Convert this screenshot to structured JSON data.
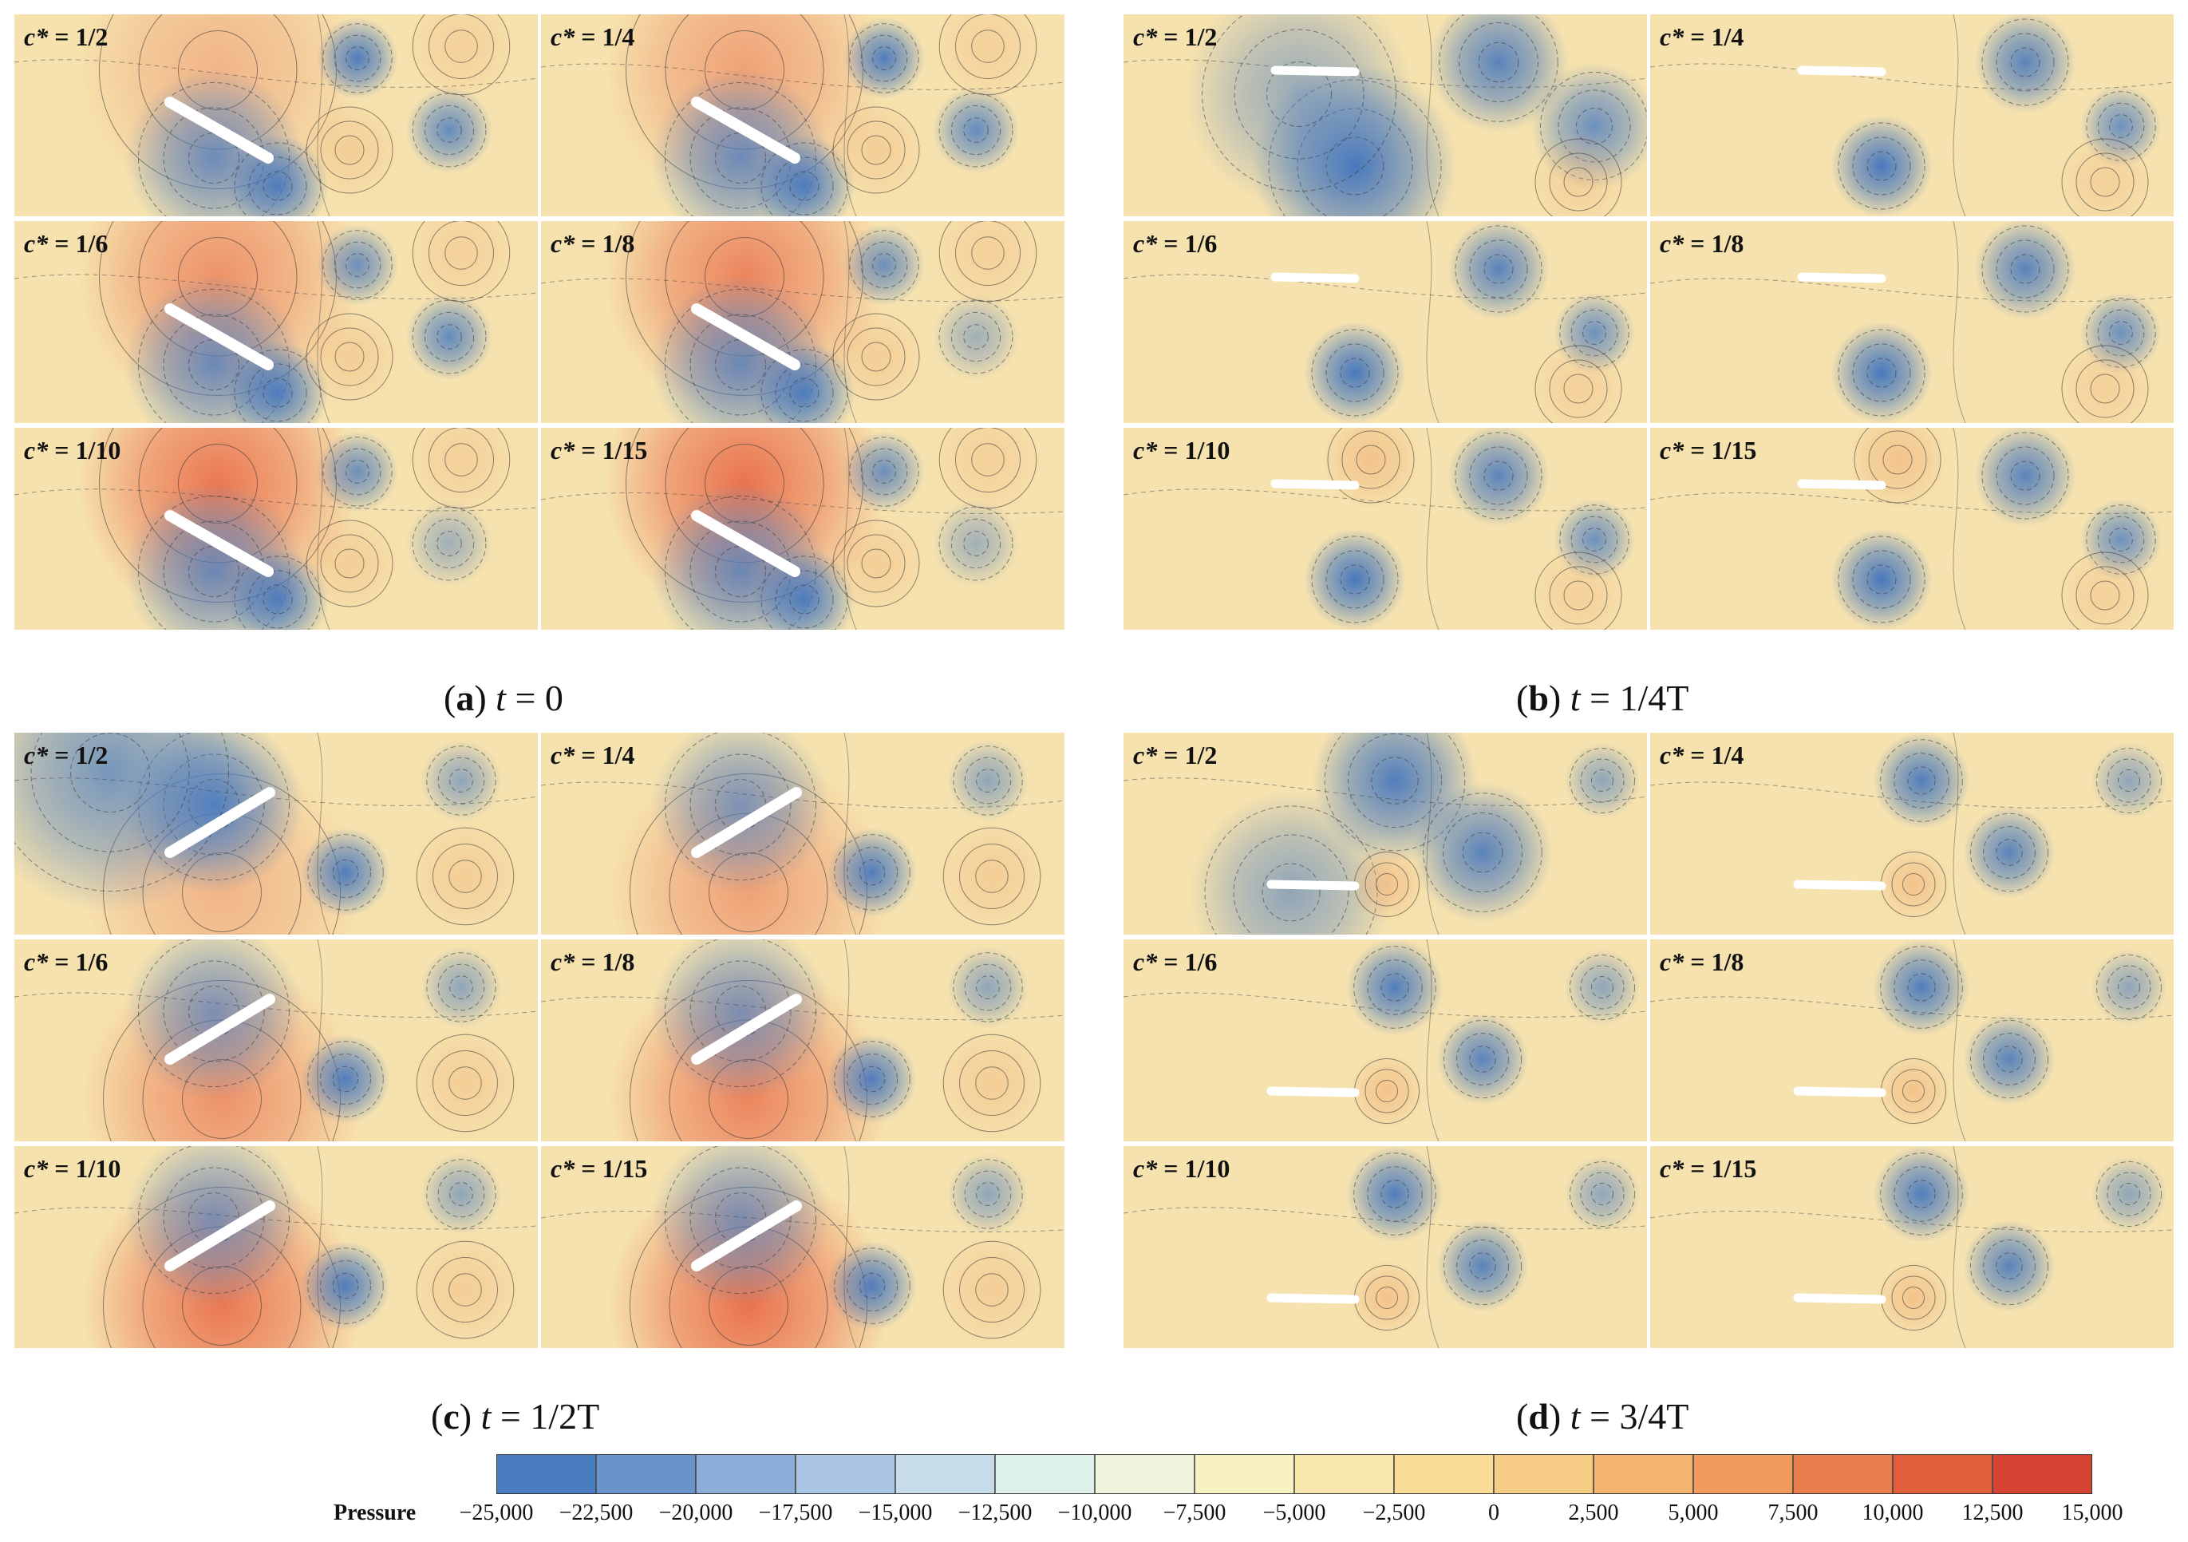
{
  "groups": [
    {
      "id": "a",
      "caption_letter": "a",
      "caption_var": "t",
      "caption_value": "= 0",
      "regime": "a",
      "panels": [
        {
          "label_var": "c*",
          "label_value": "= 1/2",
          "level": 0
        },
        {
          "label_var": "c*",
          "label_value": "= 1/4",
          "level": 1
        },
        {
          "label_var": "c*",
          "label_value": "= 1/6",
          "level": 2
        },
        {
          "label_var": "c*",
          "label_value": "= 1/8",
          "level": 3
        },
        {
          "label_var": "c*",
          "label_value": "= 1/10",
          "level": 4
        },
        {
          "label_var": "c*",
          "label_value": "= 1/15",
          "level": 5
        }
      ]
    },
    {
      "id": "b",
      "caption_letter": "b",
      "caption_var": "t",
      "caption_value": "= 1/4T",
      "regime": "b",
      "panels": [
        {
          "label_var": "c*",
          "label_value": "= 1/2",
          "level": 0
        },
        {
          "label_var": "c*",
          "label_value": "= 1/4",
          "level": 1
        },
        {
          "label_var": "c*",
          "label_value": "= 1/6",
          "level": 2
        },
        {
          "label_var": "c*",
          "label_value": "= 1/8",
          "level": 3
        },
        {
          "label_var": "c*",
          "label_value": "= 1/10",
          "level": 4
        },
        {
          "label_var": "c*",
          "label_value": "= 1/15",
          "level": 5
        }
      ]
    },
    {
      "id": "c",
      "caption_letter": "c",
      "caption_var": "t",
      "caption_value": "= 1/2T",
      "regime": "c",
      "panels": [
        {
          "label_var": "c*",
          "label_value": "= 1/2",
          "level": 0
        },
        {
          "label_var": "c*",
          "label_value": "= 1/4",
          "level": 1
        },
        {
          "label_var": "c*",
          "label_value": "= 1/6",
          "level": 2
        },
        {
          "label_var": "c*",
          "label_value": "= 1/8",
          "level": 3
        },
        {
          "label_var": "c*",
          "label_value": "= 1/10",
          "level": 4
        },
        {
          "label_var": "c*",
          "label_value": "= 1/15",
          "level": 5
        }
      ]
    },
    {
      "id": "d",
      "caption_letter": "d",
      "caption_var": "t",
      "caption_value": "= 3/4T",
      "regime": "d",
      "panels": [
        {
          "label_var": "c*",
          "label_value": "= 1/2",
          "level": 0
        },
        {
          "label_var": "c*",
          "label_value": "= 1/4",
          "level": 1
        },
        {
          "label_var": "c*",
          "label_value": "= 1/6",
          "level": 2
        },
        {
          "label_var": "c*",
          "label_value": "= 1/8",
          "level": 3
        },
        {
          "label_var": "c*",
          "label_value": "= 1/10",
          "level": 4
        },
        {
          "label_var": "c*",
          "label_value": "= 1/15",
          "level": 5
        }
      ]
    }
  ],
  "colorbar": {
    "title": "Pressure",
    "ticks": [
      "−25,000",
      "−22,500",
      "−20,000",
      "−17,500",
      "−15,000",
      "−12,500",
      "−10,000",
      "−7,500",
      "−5,000",
      "−2,500",
      "0",
      "2,500",
      "5,000",
      "7,500",
      "10,000",
      "12,500",
      "15,000"
    ],
    "colors": [
      "#4a7cc0",
      "#6a93cc",
      "#8aaed7",
      "#abc6e2",
      "#c7dcea",
      "#def0ec",
      "#eef5dc",
      "#f8f1c2",
      "#f8e7ad",
      "#f8dc98",
      "#f7cc85",
      "#f4b470",
      "#f09a5d",
      "#ea7d4c",
      "#e15f3d",
      "#d64333"
    ],
    "colors_note": "fill colors of the 16 colorbar bands from -25,000 to 15,000"
  }
}
